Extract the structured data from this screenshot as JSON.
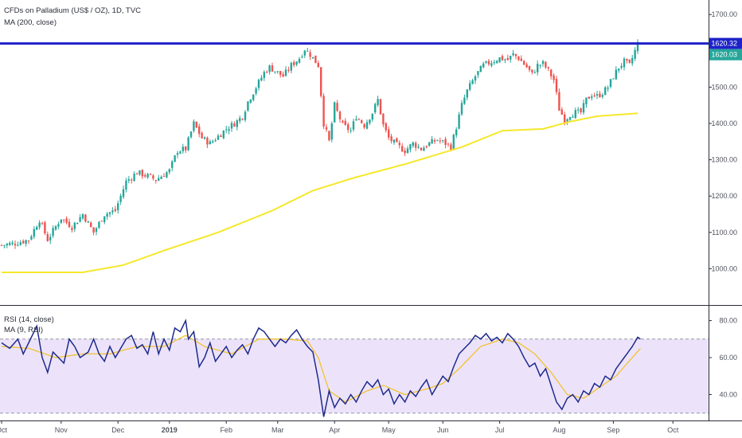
{
  "header": {
    "title": "CFDs on Palladium (US$ / OZ), 1D, TVC",
    "ma_label": "MA (200, close)"
  },
  "rsi_panel": {
    "rsi_label": "RSI (14, close)",
    "ma_label": "MA (9, RSI)"
  },
  "colors": {
    "up": "#26a69a",
    "down": "#ef5350",
    "ma200": "#f5e82a",
    "hline": "#1e22c8",
    "rsi_line": "#1e2a8c",
    "rsi_ma": "#f2c230",
    "rsi_band": "#ece3fb",
    "last_tag": "#26a69a"
  },
  "chart_data": [
    {
      "type": "candlestick",
      "x_labels": [
        "Oct",
        "Nov",
        "Dec",
        "2019",
        "Feb",
        "Mar",
        "Apr",
        "May",
        "Jun",
        "Jul",
        "Aug",
        "Sep",
        "Oct"
      ],
      "x_label_index": [
        0,
        22,
        43,
        62,
        83,
        102,
        123,
        143,
        163,
        184,
        206,
        226,
        248
      ],
      "ylim": [
        900,
        1740
      ],
      "yticks": [
        1000,
        1100,
        1200,
        1300,
        1400,
        1500,
        1600,
        1700
      ],
      "ytick_labels": [
        "1000.00",
        "1100.00",
        "1200.00",
        "1300.00",
        "1400.00",
        "1500.00",
        "1600.00",
        "1700.00"
      ],
      "horizontal_line": 1620.32,
      "price_tags": [
        {
          "value": 1620.32,
          "label": "1620.32",
          "style": "line"
        },
        {
          "value": 1620.03,
          "label": "1620.03",
          "style": "last"
        }
      ],
      "close_anchors": [
        [
          0,
          1065
        ],
        [
          5,
          1070
        ],
        [
          10,
          1080
        ],
        [
          14,
          1135
        ],
        [
          17,
          1080
        ],
        [
          22,
          1140
        ],
        [
          26,
          1115
        ],
        [
          30,
          1150
        ],
        [
          34,
          1100
        ],
        [
          38,
          1150
        ],
        [
          42,
          1160
        ],
        [
          46,
          1240
        ],
        [
          50,
          1265
        ],
        [
          54,
          1255
        ],
        [
          57,
          1245
        ],
        [
          62,
          1270
        ],
        [
          65,
          1325
        ],
        [
          68,
          1330
        ],
        [
          71,
          1400
        ],
        [
          74,
          1360
        ],
        [
          77,
          1345
        ],
        [
          80,
          1365
        ],
        [
          83,
          1385
        ],
        [
          86,
          1400
        ],
        [
          89,
          1420
        ],
        [
          91,
          1460
        ],
        [
          94,
          1500
        ],
        [
          97,
          1540
        ],
        [
          99,
          1555
        ],
        [
          101,
          1545
        ],
        [
          104,
          1530
        ],
        [
          107,
          1560
        ],
        [
          110,
          1580
        ],
        [
          112,
          1605
        ],
        [
          114,
          1590
        ],
        [
          117,
          1560
        ],
        [
          119,
          1400
        ],
        [
          121,
          1350
        ],
        [
          123,
          1450
        ],
        [
          126,
          1395
        ],
        [
          129,
          1380
        ],
        [
          131,
          1420
        ],
        [
          134,
          1395
        ],
        [
          137,
          1430
        ],
        [
          139,
          1465
        ],
        [
          141,
          1395
        ],
        [
          143,
          1360
        ],
        [
          146,
          1340
        ],
        [
          149,
          1325
        ],
        [
          152,
          1345
        ],
        [
          155,
          1330
        ],
        [
          158,
          1345
        ],
        [
          161,
          1355
        ],
        [
          164,
          1345
        ],
        [
          166,
          1335
        ],
        [
          168,
          1390
        ],
        [
          170,
          1450
        ],
        [
          172,
          1490
        ],
        [
          175,
          1530
        ],
        [
          178,
          1560
        ],
        [
          181,
          1570
        ],
        [
          184,
          1580
        ],
        [
          187,
          1575
        ],
        [
          189,
          1590
        ],
        [
          191,
          1580
        ],
        [
          194,
          1555
        ],
        [
          196,
          1535
        ],
        [
          198,
          1560
        ],
        [
          200,
          1565
        ],
        [
          202,
          1545
        ],
        [
          204,
          1520
        ],
        [
          206,
          1440
        ],
        [
          208,
          1410
        ],
        [
          210,
          1425
        ],
        [
          212,
          1430
        ],
        [
          214,
          1430
        ],
        [
          216,
          1465
        ],
        [
          218,
          1480
        ],
        [
          220,
          1475
        ],
        [
          222,
          1485
        ],
        [
          224,
          1500
        ],
        [
          226,
          1530
        ],
        [
          228,
          1555
        ],
        [
          230,
          1570
        ],
        [
          232,
          1560
        ],
        [
          234,
          1600
        ],
        [
          235,
          1620
        ]
      ],
      "ma200_anchors": [
        [
          0,
          990
        ],
        [
          30,
          990
        ],
        [
          45,
          1010
        ],
        [
          60,
          1050
        ],
        [
          80,
          1100
        ],
        [
          100,
          1160
        ],
        [
          115,
          1215
        ],
        [
          130,
          1250
        ],
        [
          150,
          1290
        ],
        [
          170,
          1335
        ],
        [
          185,
          1380
        ],
        [
          200,
          1385
        ],
        [
          210,
          1405
        ],
        [
          220,
          1420
        ],
        [
          235,
          1428
        ]
      ]
    },
    {
      "type": "line",
      "name_rsi": "RSI (14, close)",
      "name_ma": "MA (9, RSI)",
      "ylim": [
        26,
        88
      ],
      "yticks": [
        40,
        60,
        80
      ],
      "ytick_labels": [
        "40.00",
        "60.00",
        "80.00"
      ],
      "band": [
        30,
        70
      ],
      "rsi_anchors": [
        [
          0,
          68
        ],
        [
          3,
          65
        ],
        [
          6,
          70
        ],
        [
          8,
          62
        ],
        [
          10,
          68
        ],
        [
          13,
          77
        ],
        [
          15,
          60
        ],
        [
          17,
          52
        ],
        [
          19,
          63
        ],
        [
          21,
          60
        ],
        [
          23,
          57
        ],
        [
          25,
          70
        ],
        [
          27,
          66
        ],
        [
          29,
          60
        ],
        [
          32,
          63
        ],
        [
          34,
          70
        ],
        [
          36,
          62
        ],
        [
          38,
          58
        ],
        [
          40,
          66
        ],
        [
          42,
          60
        ],
        [
          44,
          65
        ],
        [
          46,
          70
        ],
        [
          48,
          72
        ],
        [
          50,
          65
        ],
        [
          52,
          67
        ],
        [
          54,
          62
        ],
        [
          56,
          74
        ],
        [
          58,
          62
        ],
        [
          60,
          70
        ],
        [
          62,
          64
        ],
        [
          64,
          76
        ],
        [
          66,
          74
        ],
        [
          68,
          80
        ],
        [
          69,
          70
        ],
        [
          71,
          74
        ],
        [
          73,
          55
        ],
        [
          75,
          60
        ],
        [
          77,
          68
        ],
        [
          79,
          58
        ],
        [
          81,
          62
        ],
        [
          83,
          66
        ],
        [
          85,
          60
        ],
        [
          87,
          64
        ],
        [
          89,
          67
        ],
        [
          91,
          62
        ],
        [
          93,
          70
        ],
        [
          95,
          76
        ],
        [
          97,
          74
        ],
        [
          99,
          70
        ],
        [
          101,
          66
        ],
        [
          103,
          70
        ],
        [
          105,
          68
        ],
        [
          107,
          72
        ],
        [
          109,
          75
        ],
        [
          111,
          70
        ],
        [
          113,
          66
        ],
        [
          115,
          63
        ],
        [
          117,
          48
        ],
        [
          119,
          28
        ],
        [
          121,
          42
        ],
        [
          123,
          33
        ],
        [
          125,
          38
        ],
        [
          127,
          35
        ],
        [
          129,
          40
        ],
        [
          131,
          36
        ],
        [
          133,
          42
        ],
        [
          135,
          47
        ],
        [
          137,
          44
        ],
        [
          139,
          48
        ],
        [
          141,
          40
        ],
        [
          143,
          43
        ],
        [
          145,
          35
        ],
        [
          147,
          40
        ],
        [
          149,
          36
        ],
        [
          151,
          42
        ],
        [
          153,
          39
        ],
        [
          155,
          44
        ],
        [
          157,
          48
        ],
        [
          159,
          40
        ],
        [
          161,
          45
        ],
        [
          163,
          50
        ],
        [
          165,
          47
        ],
        [
          167,
          55
        ],
        [
          169,
          62
        ],
        [
          171,
          65
        ],
        [
          173,
          68
        ],
        [
          175,
          72
        ],
        [
          177,
          70
        ],
        [
          179,
          73
        ],
        [
          181,
          69
        ],
        [
          183,
          71
        ],
        [
          185,
          68
        ],
        [
          187,
          73
        ],
        [
          189,
          70
        ],
        [
          191,
          66
        ],
        [
          193,
          60
        ],
        [
          195,
          55
        ],
        [
          197,
          57
        ],
        [
          199,
          50
        ],
        [
          201,
          54
        ],
        [
          203,
          45
        ],
        [
          205,
          36
        ],
        [
          207,
          32
        ],
        [
          209,
          38
        ],
        [
          211,
          40
        ],
        [
          213,
          36
        ],
        [
          215,
          42
        ],
        [
          217,
          40
        ],
        [
          219,
          46
        ],
        [
          221,
          44
        ],
        [
          223,
          50
        ],
        [
          225,
          48
        ],
        [
          227,
          54
        ],
        [
          229,
          58
        ],
        [
          231,
          62
        ],
        [
          233,
          66
        ],
        [
          235,
          71
        ],
        [
          236,
          70
        ]
      ],
      "ma_anchors": [
        [
          0,
          66
        ],
        [
          10,
          65
        ],
        [
          20,
          60
        ],
        [
          30,
          62
        ],
        [
          40,
          62
        ],
        [
          50,
          66
        ],
        [
          60,
          66
        ],
        [
          68,
          72
        ],
        [
          75,
          66
        ],
        [
          85,
          62
        ],
        [
          95,
          70
        ],
        [
          105,
          70
        ],
        [
          113,
          69
        ],
        [
          117,
          60
        ],
        [
          121,
          42
        ],
        [
          127,
          36
        ],
        [
          135,
          42
        ],
        [
          141,
          45
        ],
        [
          149,
          40
        ],
        [
          157,
          43
        ],
        [
          163,
          46
        ],
        [
          169,
          54
        ],
        [
          177,
          66
        ],
        [
          185,
          70
        ],
        [
          191,
          68
        ],
        [
          197,
          62
        ],
        [
          203,
          52
        ],
        [
          209,
          40
        ],
        [
          215,
          38
        ],
        [
          221,
          44
        ],
        [
          227,
          50
        ],
        [
          233,
          60
        ],
        [
          236,
          65
        ]
      ]
    }
  ]
}
